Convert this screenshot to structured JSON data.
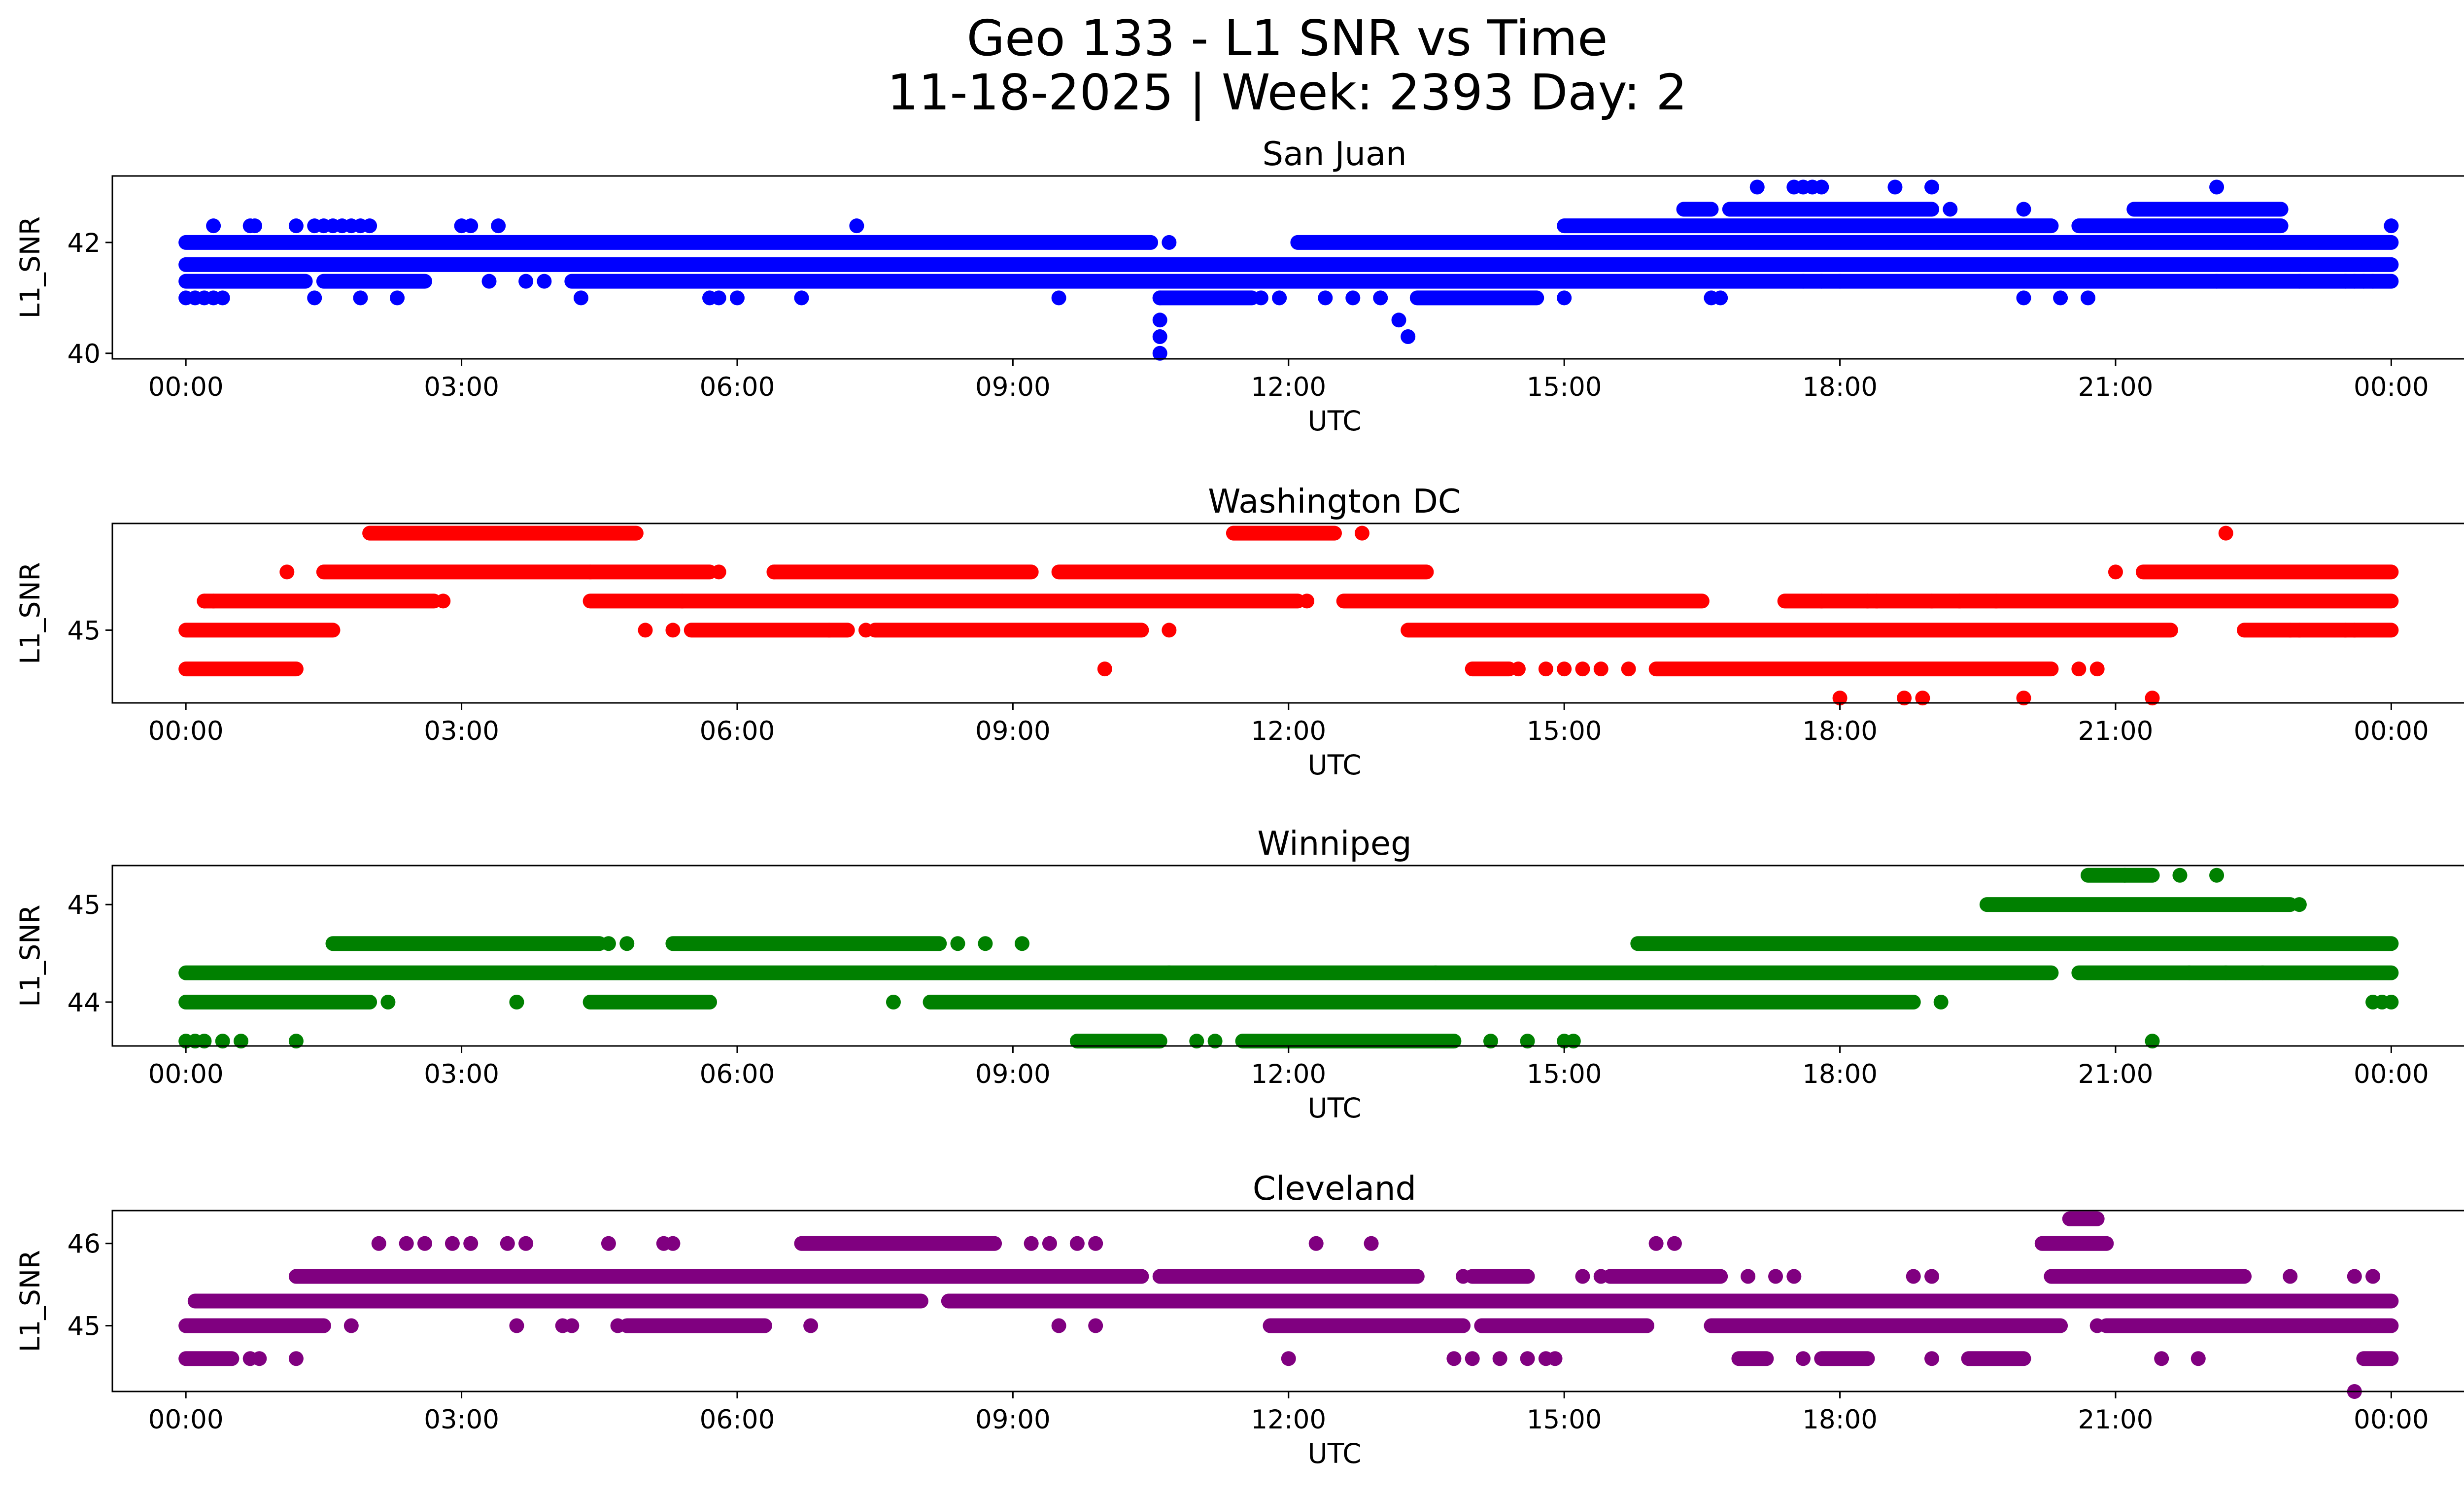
{
  "figure": {
    "title_line1": "Geo 133 - L1 SNR vs Time",
    "title_line2": "11-18-2025 | Week: 2393 Day: 2"
  },
  "chart_data": [
    {
      "type": "scatter",
      "title": "San Juan",
      "xlabel": "UTC",
      "ylabel": "L1_SNR",
      "color": "#0000ff",
      "xlim": [
        -0.8,
        25.8
      ],
      "ylim": [
        39.9,
        43.2
      ],
      "xticks": [
        0,
        3,
        6,
        9,
        12,
        15,
        18,
        21,
        24
      ],
      "xtick_labels": [
        "00:00",
        "03:00",
        "06:00",
        "09:00",
        "12:00",
        "15:00",
        "18:00",
        "21:00",
        "00:00"
      ],
      "yticks": [
        40,
        42
      ],
      "ytick_labels": [
        "40",
        "42"
      ],
      "bands": [
        {
          "y": 42.0,
          "segments": [
            [
              0,
              10.5
            ],
            [
              12.1,
              24
            ]
          ]
        },
        {
          "y": 41.6,
          "segments": [
            [
              0,
              24
            ]
          ]
        },
        {
          "y": 41.3,
          "segments": [
            [
              0,
              1.3
            ],
            [
              1.5,
              2.6
            ],
            [
              4.2,
              24
            ]
          ]
        },
        {
          "y": 41.0,
          "segments": [
            [
              10.6,
              11.6
            ],
            [
              13.4,
              14.7
            ]
          ]
        },
        {
          "y": 42.3,
          "segments": [
            [
              15.0,
              20.3
            ],
            [
              20.6,
              22.8
            ]
          ]
        },
        {
          "y": 42.6,
          "segments": [
            [
              16.3,
              16.6
            ],
            [
              16.8,
              19.0
            ],
            [
              21.2,
              22.8
            ]
          ]
        }
      ],
      "points": [
        [
          0.0,
          41.0
        ],
        [
          0.1,
          41.0
        ],
        [
          0.2,
          41.0
        ],
        [
          0.3,
          41.0
        ],
        [
          0.4,
          41.0
        ],
        [
          0.3,
          42.3
        ],
        [
          0.7,
          42.3
        ],
        [
          0.75,
          42.3
        ],
        [
          1.2,
          42.3
        ],
        [
          1.4,
          41.0
        ],
        [
          1.9,
          41.0
        ],
        [
          1.4,
          42.3
        ],
        [
          1.5,
          42.3
        ],
        [
          1.6,
          42.3
        ],
        [
          1.7,
          42.3
        ],
        [
          1.8,
          42.3
        ],
        [
          1.9,
          42.3
        ],
        [
          2.0,
          42.3
        ],
        [
          2.3,
          41.0
        ],
        [
          3.0,
          42.3
        ],
        [
          3.1,
          42.3
        ],
        [
          3.4,
          42.3
        ],
        [
          3.3,
          41.3
        ],
        [
          3.7,
          41.3
        ],
        [
          3.9,
          41.3
        ],
        [
          4.3,
          41.0
        ],
        [
          5.7,
          41.0
        ],
        [
          5.8,
          41.0
        ],
        [
          6.0,
          41.0
        ],
        [
          6.7,
          41.0
        ],
        [
          7.3,
          42.3
        ],
        [
          9.5,
          41.0
        ],
        [
          10.6,
          40.0
        ],
        [
          10.6,
          40.3
        ],
        [
          10.6,
          40.6
        ],
        [
          10.6,
          41.0
        ],
        [
          10.7,
          42.0
        ],
        [
          11.7,
          41.0
        ],
        [
          11.9,
          41.0
        ],
        [
          12.4,
          41.0
        ],
        [
          12.7,
          41.0
        ],
        [
          13.0,
          41.0
        ],
        [
          13.2,
          40.6
        ],
        [
          13.3,
          40.3
        ],
        [
          15.0,
          41.0
        ],
        [
          16.6,
          41.0
        ],
        [
          16.7,
          41.0
        ],
        [
          17.1,
          43.0
        ],
        [
          17.5,
          43.0
        ],
        [
          17.6,
          43.0
        ],
        [
          17.7,
          43.0
        ],
        [
          17.8,
          43.0
        ],
        [
          18.6,
          43.0
        ],
        [
          19.0,
          43.0
        ],
        [
          17.6,
          41.3
        ],
        [
          17.8,
          41.3
        ],
        [
          18.0,
          41.3
        ],
        [
          19.2,
          42.6
        ],
        [
          20.0,
          42.6
        ],
        [
          20.0,
          41.0
        ],
        [
          20.4,
          41.0
        ],
        [
          20.7,
          41.0
        ],
        [
          22.1,
          43.0
        ],
        [
          22.1,
          41.3
        ],
        [
          23.0,
          41.3
        ],
        [
          23.5,
          41.3
        ],
        [
          23.6,
          41.3
        ],
        [
          23.7,
          41.3
        ],
        [
          23.8,
          41.3
        ],
        [
          24.0,
          42.3
        ]
      ]
    },
    {
      "type": "scatter",
      "title": "Washington DC",
      "xlabel": "UTC",
      "ylabel": "L1_SNR",
      "color": "#ff0000",
      "xlim": [
        -0.8,
        25.8
      ],
      "ylim": [
        44.25,
        46.1
      ],
      "xticks": [
        0,
        3,
        6,
        9,
        12,
        15,
        18,
        21,
        24
      ],
      "xtick_labels": [
        "00:00",
        "03:00",
        "06:00",
        "09:00",
        "12:00",
        "15:00",
        "18:00",
        "21:00",
        "00:00"
      ],
      "yticks": [
        45
      ],
      "ytick_labels": [
        "45"
      ],
      "bands": [
        {
          "y": 46.0,
          "segments": [
            [
              2.0,
              4.9
            ],
            [
              11.4,
              12.5
            ]
          ]
        },
        {
          "y": 45.6,
          "segments": [
            [
              1.5,
              5.7
            ],
            [
              6.4,
              9.2
            ],
            [
              9.5,
              13.5
            ],
            [
              21.3,
              24
            ]
          ]
        },
        {
          "y": 45.3,
          "segments": [
            [
              0.2,
              2.7
            ],
            [
              4.4,
              12.1
            ],
            [
              12.6,
              16.5
            ],
            [
              17.4,
              24
            ]
          ]
        },
        {
          "y": 45.0,
          "segments": [
            [
              0,
              1.6
            ],
            [
              5.5,
              7.2
            ],
            [
              7.5,
              10.4
            ],
            [
              13.3,
              21.6
            ],
            [
              22.4,
              24
            ]
          ]
        },
        {
          "y": 44.6,
          "segments": [
            [
              0,
              1.2
            ],
            [
              14.0,
              14.4
            ],
            [
              16.0,
              20.3
            ]
          ]
        }
      ],
      "points": [
        [
          0.2,
          45.3
        ],
        [
          0.3,
          45.3
        ],
        [
          1.1,
          45.6
        ],
        [
          2.8,
          45.3
        ],
        [
          4.4,
          45.6
        ],
        [
          5.0,
          45.0
        ],
        [
          5.3,
          45.0
        ],
        [
          5.4,
          45.3
        ],
        [
          5.8,
          45.6
        ],
        [
          6.4,
          45.6
        ],
        [
          7.0,
          45.0
        ],
        [
          7.4,
          45.0
        ],
        [
          10.0,
          44.6
        ],
        [
          10.7,
          45.0
        ],
        [
          12.8,
          46.0
        ],
        [
          12.2,
          45.3
        ],
        [
          14.5,
          44.6
        ],
        [
          14.8,
          44.6
        ],
        [
          15.0,
          44.6
        ],
        [
          15.2,
          44.6
        ],
        [
          15.4,
          44.6
        ],
        [
          15.7,
          44.6
        ],
        [
          17.8,
          45.3
        ],
        [
          18.0,
          44.3
        ],
        [
          18.7,
          44.3
        ],
        [
          18.9,
          44.3
        ],
        [
          18.3,
          45.3
        ],
        [
          18.4,
          45.3
        ],
        [
          19.0,
          45.3
        ],
        [
          19.3,
          45.3
        ],
        [
          19.7,
          45.3
        ],
        [
          20.0,
          44.3
        ],
        [
          20.6,
          44.6
        ],
        [
          20.8,
          44.6
        ],
        [
          21.0,
          45.6
        ],
        [
          21.4,
          44.3
        ],
        [
          22.2,
          46.0
        ],
        [
          22.9,
          45.0
        ],
        [
          23.0,
          45.0
        ],
        [
          23.5,
          45.0
        ],
        [
          23.6,
          45.0
        ]
      ]
    },
    {
      "type": "scatter",
      "title": "Winnipeg",
      "xlabel": "UTC",
      "ylabel": "L1_SNR",
      "color": "#008000",
      "xlim": [
        -0.8,
        25.8
      ],
      "ylim": [
        43.55,
        45.4
      ],
      "xticks": [
        0,
        3,
        6,
        9,
        12,
        15,
        18,
        21,
        24
      ],
      "xtick_labels": [
        "00:00",
        "03:00",
        "06:00",
        "09:00",
        "12:00",
        "15:00",
        "18:00",
        "21:00",
        "00:00"
      ],
      "yticks": [
        44,
        45
      ],
      "ytick_labels": [
        "44",
        "45"
      ],
      "bands": [
        {
          "y": 45.3,
          "segments": [
            [
              20.7,
              21.4
            ]
          ]
        },
        {
          "y": 45.0,
          "segments": [
            [
              19.6,
              22.9
            ]
          ]
        },
        {
          "y": 44.6,
          "segments": [
            [
              1.6,
              4.5
            ],
            [
              5.3,
              8.2
            ],
            [
              15.8,
              24
            ]
          ]
        },
        {
          "y": 44.3,
          "segments": [
            [
              0,
              20.3
            ],
            [
              20.6,
              24
            ]
          ]
        },
        {
          "y": 44.0,
          "segments": [
            [
              0,
              2.0
            ],
            [
              4.4,
              5.7
            ],
            [
              8.1,
              18.8
            ]
          ]
        },
        {
          "y": 43.6,
          "segments": [
            [
              9.7,
              10.6
            ],
            [
              11.5,
              13.8
            ]
          ]
        }
      ],
      "points": [
        [
          0.0,
          43.6
        ],
        [
          0.1,
          43.6
        ],
        [
          0.2,
          43.6
        ],
        [
          0.4,
          43.6
        ],
        [
          0.6,
          43.6
        ],
        [
          1.2,
          43.6
        ],
        [
          2.2,
          44.0
        ],
        [
          3.6,
          44.0
        ],
        [
          7.7,
          44.0
        ],
        [
          4.6,
          44.6
        ],
        [
          4.8,
          44.6
        ],
        [
          8.4,
          44.6
        ],
        [
          8.7,
          44.6
        ],
        [
          9.1,
          44.6
        ],
        [
          11.0,
          43.6
        ],
        [
          11.2,
          43.6
        ],
        [
          14.2,
          43.6
        ],
        [
          14.6,
          43.6
        ],
        [
          15.0,
          43.6
        ],
        [
          15.1,
          43.6
        ],
        [
          13.6,
          44.3
        ],
        [
          10.7,
          44.3
        ],
        [
          19.1,
          44.0
        ],
        [
          21.1,
          45.3
        ],
        [
          21.7,
          45.3
        ],
        [
          22.1,
          45.3
        ],
        [
          21.4,
          43.6
        ],
        [
          21.8,
          44.3
        ],
        [
          22.2,
          44.3
        ],
        [
          22.6,
          44.3
        ],
        [
          23.8,
          44.0
        ],
        [
          23.9,
          44.0
        ],
        [
          24.0,
          44.0
        ],
        [
          23.0,
          45.0
        ]
      ]
    },
    {
      "type": "scatter",
      "title": "Cleveland",
      "xlabel": "UTC",
      "ylabel": "L1_SNR",
      "color": "#800080",
      "xlim": [
        -0.8,
        25.8
      ],
      "ylim": [
        44.2,
        46.4
      ],
      "xticks": [
        0,
        3,
        6,
        9,
        12,
        15,
        18,
        21,
        24
      ],
      "xtick_labels": [
        "00:00",
        "03:00",
        "06:00",
        "09:00",
        "12:00",
        "15:00",
        "18:00",
        "21:00",
        "00:00"
      ],
      "yticks": [
        45,
        46
      ],
      "ytick_labels": [
        "45",
        "46"
      ],
      "bands": [
        {
          "y": 46.3,
          "segments": [
            [
              20.5,
              20.8
            ]
          ]
        },
        {
          "y": 46.0,
          "segments": [
            [
              6.7,
              8.8
            ],
            [
              20.2,
              20.9
            ]
          ]
        },
        {
          "y": 45.6,
          "segments": [
            [
              1.2,
              10.4
            ],
            [
              10.6,
              13.4
            ],
            [
              14.0,
              14.6
            ],
            [
              15.5,
              16.7
            ],
            [
              20.3,
              22.4
            ]
          ]
        },
        {
          "y": 45.3,
          "segments": [
            [
              0.1,
              8.0
            ],
            [
              8.3,
              24
            ]
          ]
        },
        {
          "y": 45.0,
          "segments": [
            [
              0,
              1.5
            ],
            [
              4.8,
              6.3
            ],
            [
              11.8,
              13.9
            ],
            [
              14.1,
              15.9
            ],
            [
              16.6,
              20.4
            ],
            [
              20.9,
              24
            ]
          ]
        },
        {
          "y": 44.6,
          "segments": [
            [
              0,
              0.5
            ],
            [
              16.9,
              17.2
            ],
            [
              17.8,
              18.3
            ],
            [
              19.4,
              20.0
            ],
            [
              23.7,
              24
            ]
          ]
        }
      ],
      "points": [
        [
          2.1,
          46.0
        ],
        [
          2.4,
          46.0
        ],
        [
          2.6,
          46.0
        ],
        [
          2.9,
          46.0
        ],
        [
          3.1,
          46.0
        ],
        [
          3.5,
          46.0
        ],
        [
          3.7,
          46.0
        ],
        [
          4.6,
          46.0
        ],
        [
          5.2,
          46.0
        ],
        [
          5.3,
          46.0
        ],
        [
          9.2,
          46.0
        ],
        [
          9.4,
          46.0
        ],
        [
          9.7,
          46.0
        ],
        [
          9.9,
          46.0
        ],
        [
          12.3,
          46.0
        ],
        [
          12.9,
          46.0
        ],
        [
          16.0,
          46.0
        ],
        [
          16.2,
          46.0
        ],
        [
          0.7,
          44.6
        ],
        [
          0.8,
          44.6
        ],
        [
          1.2,
          44.6
        ],
        [
          1.8,
          45.0
        ],
        [
          3.6,
          45.0
        ],
        [
          4.1,
          45.0
        ],
        [
          4.2,
          45.0
        ],
        [
          4.7,
          45.0
        ],
        [
          6.8,
          45.0
        ],
        [
          9.5,
          45.0
        ],
        [
          9.9,
          45.0
        ],
        [
          12.0,
          44.6
        ],
        [
          13.8,
          44.6
        ],
        [
          14.0,
          44.6
        ],
        [
          14.3,
          44.6
        ],
        [
          14.6,
          44.6
        ],
        [
          14.8,
          44.6
        ],
        [
          14.9,
          44.6
        ],
        [
          17.6,
          44.6
        ],
        [
          18.8,
          45.6
        ],
        [
          19.0,
          45.6
        ],
        [
          19.0,
          44.6
        ],
        [
          13.9,
          45.6
        ],
        [
          15.2,
          45.6
        ],
        [
          15.4,
          45.6
        ],
        [
          17.0,
          45.6
        ],
        [
          17.3,
          45.6
        ],
        [
          17.5,
          45.6
        ],
        [
          21.5,
          44.6
        ],
        [
          21.9,
          44.6
        ],
        [
          20.8,
          45.0
        ],
        [
          22.9,
          45.6
        ],
        [
          23.6,
          45.6
        ],
        [
          23.8,
          45.6
        ],
        [
          23.2,
          45.0
        ],
        [
          23.4,
          45.0
        ],
        [
          23.6,
          44.2
        ]
      ]
    }
  ]
}
